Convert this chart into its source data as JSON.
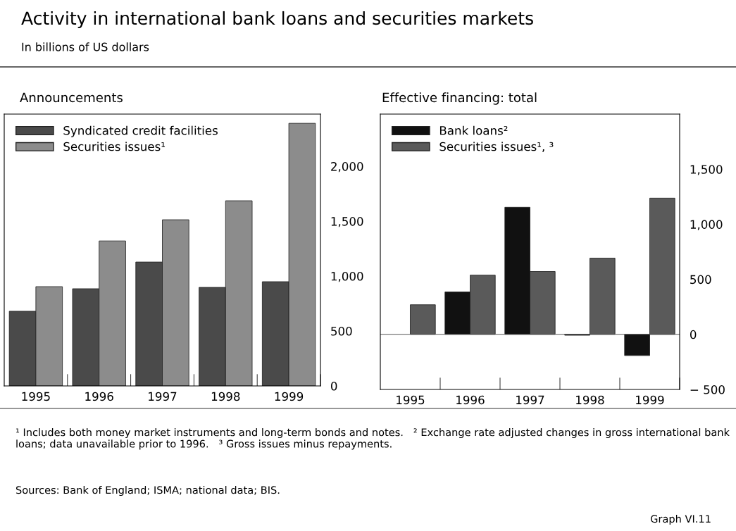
{
  "chart_data": [
    {
      "type": "other",
      "title": "Activity in international bank loans and securities markets",
      "subtitle": "In billions of US dollars"
    },
    {
      "type": "bar",
      "title": "Announcements",
      "categories": [
        "1995",
        "1996",
        "1997",
        "1998",
        "1999"
      ],
      "series": [
        {
          "name": "Syndicated credit facilities",
          "color": "#4a4a4a",
          "values": [
            680,
            885,
            1128,
            897,
            949
          ]
        },
        {
          "name": "Securities issues¹",
          "color": "#8c8c8c",
          "values": [
            904,
            1320,
            1513,
            1686,
            2391
          ]
        }
      ],
      "ylim": [
        0,
        2475
      ],
      "yticks": [
        0,
        500,
        {
          "value": 1000,
          "label": "1,000"
        },
        {
          "value": 1500,
          "label": "1,500"
        },
        {
          "value": 2000,
          "label": "2,000"
        }
      ],
      "legend": "top left",
      "grid": false
    },
    {
      "type": "bar",
      "title": "Effective financing: total",
      "categories": [
        "1995",
        "1996",
        "1997",
        "1998",
        "1999"
      ],
      "series": [
        {
          "name": "Bank loans²",
          "color": "#111111",
          "values": [
            null,
            385,
            1154,
            -8,
            -192
          ]
        },
        {
          "name": "Securities issues¹, ³",
          "color": "#5a5a5a",
          "values": [
            269,
            538,
            571,
            692,
            1237
          ]
        }
      ],
      "ref_lines": [
        {
          "axis": "y",
          "value": 0,
          "color": "#555555"
        }
      ],
      "ylim": [
        -500,
        2000
      ],
      "yticks": [
        {
          "value": -500,
          "label": "− 500"
        },
        0,
        500,
        {
          "value": 1000,
          "label": "1,000"
        },
        {
          "value": 1500,
          "label": "1,500"
        }
      ],
      "legend": "top left",
      "grid": false
    },
    {
      "type": "other",
      "annotations": [
        "¹ Includes both money market instruments and long-term bonds and notes.   ² Exchange rate adjusted changes in gross international bank loans; data unavailable prior to 1996.   ³ Gross issues minus repayments.",
        "Sources: Bank of England; ISMA; national data; BIS.",
        "Graph VI.11"
      ]
    }
  ]
}
